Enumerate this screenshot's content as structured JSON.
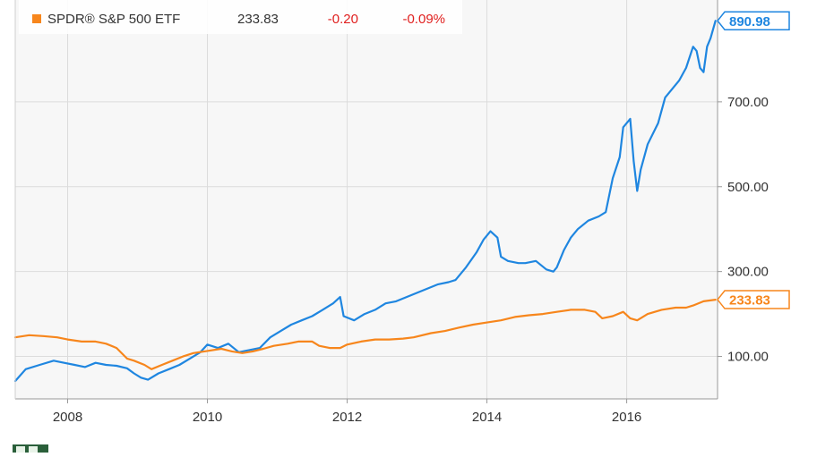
{
  "chart_data": {
    "type": "line",
    "title": "",
    "xlabel": "",
    "ylabel": "",
    "x_range": [
      2007.25,
      2017.3
    ],
    "ylim": [
      0,
      940
    ],
    "grid": true,
    "legend_position": "top-left",
    "legend": {
      "entries": [
        {
          "name": "SPDR® S&P 500 ETF",
          "value": "233.83",
          "change": "-0.20",
          "change_pct": "-0.09%",
          "color": "#f7861c",
          "change_color": "#e0201f"
        }
      ]
    },
    "x_ticks": [
      {
        "value": 2008,
        "label": "2008"
      },
      {
        "value": 2010,
        "label": "2010"
      },
      {
        "value": 2012,
        "label": "2012"
      },
      {
        "value": 2014,
        "label": "2014"
      },
      {
        "value": 2016,
        "label": "2016"
      }
    ],
    "y_ticks": [
      {
        "value": 100,
        "label": "100.00"
      },
      {
        "value": 300,
        "label": "300.00"
      },
      {
        "value": 500,
        "label": "500.00"
      },
      {
        "value": 700,
        "label": "700.00"
      }
    ],
    "end_labels": [
      {
        "series": 0,
        "label": "890.98",
        "value": 890.98
      },
      {
        "series": 1,
        "label": "233.83",
        "value": 233.83
      }
    ],
    "series": [
      {
        "color": "#1f86e0",
        "points": [
          [
            2007.25,
            42
          ],
          [
            2007.4,
            70
          ],
          [
            2007.6,
            80
          ],
          [
            2007.8,
            90
          ],
          [
            2007.95,
            85
          ],
          [
            2008.1,
            80
          ],
          [
            2008.25,
            75
          ],
          [
            2008.4,
            85
          ],
          [
            2008.55,
            80
          ],
          [
            2008.7,
            78
          ],
          [
            2008.85,
            72
          ],
          [
            2008.95,
            60
          ],
          [
            2009.05,
            50
          ],
          [
            2009.15,
            45
          ],
          [
            2009.3,
            60
          ],
          [
            2009.45,
            70
          ],
          [
            2009.6,
            80
          ],
          [
            2009.75,
            95
          ],
          [
            2009.9,
            110
          ],
          [
            2010.0,
            128
          ],
          [
            2010.15,
            120
          ],
          [
            2010.3,
            130
          ],
          [
            2010.45,
            110
          ],
          [
            2010.6,
            115
          ],
          [
            2010.75,
            120
          ],
          [
            2010.9,
            145
          ],
          [
            2011.05,
            160
          ],
          [
            2011.2,
            175
          ],
          [
            2011.35,
            185
          ],
          [
            2011.5,
            195
          ],
          [
            2011.65,
            210
          ],
          [
            2011.8,
            225
          ],
          [
            2011.9,
            240
          ],
          [
            2011.95,
            195
          ],
          [
            2012.1,
            185
          ],
          [
            2012.25,
            200
          ],
          [
            2012.4,
            210
          ],
          [
            2012.55,
            225
          ],
          [
            2012.7,
            230
          ],
          [
            2012.85,
            240
          ],
          [
            2013.0,
            250
          ],
          [
            2013.15,
            260
          ],
          [
            2013.3,
            270
          ],
          [
            2013.45,
            275
          ],
          [
            2013.55,
            280
          ],
          [
            2013.7,
            310
          ],
          [
            2013.85,
            345
          ],
          [
            2013.95,
            375
          ],
          [
            2014.05,
            395
          ],
          [
            2014.15,
            380
          ],
          [
            2014.2,
            335
          ],
          [
            2014.3,
            325
          ],
          [
            2014.45,
            320
          ],
          [
            2014.55,
            320
          ],
          [
            2014.7,
            325
          ],
          [
            2014.85,
            305
          ],
          [
            2014.95,
            300
          ],
          [
            2015.0,
            310
          ],
          [
            2015.1,
            350
          ],
          [
            2015.2,
            380
          ],
          [
            2015.3,
            400
          ],
          [
            2015.45,
            420
          ],
          [
            2015.6,
            430
          ],
          [
            2015.7,
            440
          ],
          [
            2015.8,
            520
          ],
          [
            2015.9,
            570
          ],
          [
            2015.95,
            640
          ],
          [
            2016.05,
            660
          ],
          [
            2016.1,
            560
          ],
          [
            2016.15,
            490
          ],
          [
            2016.2,
            540
          ],
          [
            2016.3,
            600
          ],
          [
            2016.45,
            650
          ],
          [
            2016.55,
            710
          ],
          [
            2016.65,
            730
          ],
          [
            2016.75,
            750
          ],
          [
            2016.85,
            780
          ],
          [
            2016.95,
            830
          ],
          [
            2017.0,
            820
          ],
          [
            2017.05,
            780
          ],
          [
            2017.1,
            770
          ],
          [
            2017.15,
            830
          ],
          [
            2017.2,
            850
          ],
          [
            2017.27,
            890.98
          ]
        ]
      },
      {
        "color": "#f7861c",
        "points": [
          [
            2007.25,
            145
          ],
          [
            2007.45,
            150
          ],
          [
            2007.65,
            148
          ],
          [
            2007.85,
            145
          ],
          [
            2008.0,
            140
          ],
          [
            2008.2,
            135
          ],
          [
            2008.4,
            135
          ],
          [
            2008.55,
            130
          ],
          [
            2008.7,
            120
          ],
          [
            2008.85,
            95
          ],
          [
            2008.95,
            90
          ],
          [
            2009.1,
            80
          ],
          [
            2009.2,
            70
          ],
          [
            2009.35,
            80
          ],
          [
            2009.5,
            90
          ],
          [
            2009.65,
            100
          ],
          [
            2009.8,
            108
          ],
          [
            2010.0,
            113
          ],
          [
            2010.2,
            118
          ],
          [
            2010.35,
            112
          ],
          [
            2010.5,
            108
          ],
          [
            2010.65,
            112
          ],
          [
            2010.8,
            118
          ],
          [
            2010.95,
            125
          ],
          [
            2011.15,
            130
          ],
          [
            2011.3,
            135
          ],
          [
            2011.5,
            135
          ],
          [
            2011.6,
            125
          ],
          [
            2011.75,
            120
          ],
          [
            2011.9,
            120
          ],
          [
            2012.0,
            128
          ],
          [
            2012.2,
            135
          ],
          [
            2012.4,
            140
          ],
          [
            2012.6,
            140
          ],
          [
            2012.8,
            142
          ],
          [
            2012.95,
            145
          ],
          [
            2013.2,
            155
          ],
          [
            2013.4,
            160
          ],
          [
            2013.6,
            168
          ],
          [
            2013.8,
            175
          ],
          [
            2014.0,
            180
          ],
          [
            2014.2,
            185
          ],
          [
            2014.4,
            193
          ],
          [
            2014.6,
            197
          ],
          [
            2014.8,
            200
          ],
          [
            2015.0,
            205
          ],
          [
            2015.2,
            210
          ],
          [
            2015.4,
            210
          ],
          [
            2015.55,
            205
          ],
          [
            2015.65,
            190
          ],
          [
            2015.8,
            195
          ],
          [
            2015.95,
            205
          ],
          [
            2016.05,
            190
          ],
          [
            2016.15,
            185
          ],
          [
            2016.3,
            200
          ],
          [
            2016.5,
            210
          ],
          [
            2016.7,
            215
          ],
          [
            2016.85,
            215
          ],
          [
            2016.95,
            220
          ],
          [
            2017.1,
            230
          ],
          [
            2017.27,
            233.83
          ]
        ]
      }
    ]
  }
}
